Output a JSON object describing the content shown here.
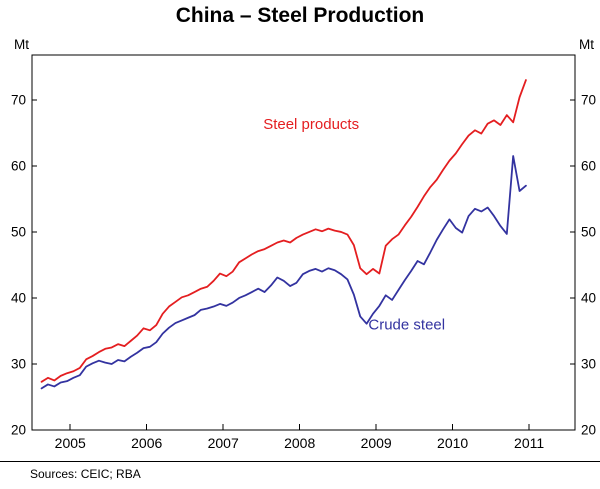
{
  "title": "China – Steel Production",
  "unit_left": "Mt",
  "unit_right": "Mt",
  "footer": {
    "sources": "Sources: CEIC; RBA"
  },
  "chart_data": {
    "type": "line",
    "title": "China – Steel Production",
    "ylabel": "Mt",
    "ylabel_right": "Mt",
    "grid": false,
    "legend_position": "in-plot-annotations",
    "ylim": [
      20,
      76.8
    ],
    "yticks": [
      20,
      30,
      40,
      50,
      60,
      70
    ],
    "xlim": [
      2004.5,
      2011.6
    ],
    "xticks": [
      2005,
      2006,
      2007,
      2008,
      2009,
      2010,
      2011
    ],
    "frequency": "monthly",
    "first_month": "Aug 2004",
    "last_month": "Dec 2010",
    "x_start_decimal": 2004.625,
    "x_step": 0.0833333,
    "series": [
      {
        "name": "Steel products",
        "color": "#e41e20",
        "label_pos": {
          "x": 2008.15,
          "y": 65.6
        },
        "values": [
          27.3,
          27.9,
          27.5,
          28.2,
          28.6,
          28.9,
          29.4,
          30.7,
          31.2,
          31.8,
          32.3,
          32.5,
          33.0,
          32.7,
          33.5,
          34.3,
          35.4,
          35.1,
          35.9,
          37.6,
          38.7,
          39.4,
          40.1,
          40.4,
          40.9,
          41.4,
          41.7,
          42.6,
          43.7,
          43.3,
          44.0,
          45.4,
          46.0,
          46.6,
          47.1,
          47.4,
          47.9,
          48.4,
          48.7,
          48.4,
          49.1,
          49.6,
          50.0,
          50.4,
          50.1,
          50.5,
          50.2,
          50.0,
          49.6,
          48.0,
          44.5,
          43.6,
          44.4,
          43.7,
          47.9,
          48.9,
          49.6,
          51.0,
          52.3,
          53.8,
          55.4,
          56.8,
          57.9,
          59.4,
          60.8,
          61.9,
          63.3,
          64.6,
          65.4,
          64.9,
          66.4,
          66.9,
          66.2,
          67.7,
          66.6,
          70.4,
          73.0
        ]
      },
      {
        "name": "Crude steel",
        "color": "#3333a0",
        "label_pos": {
          "x": 2009.4,
          "y": 35.2
        },
        "values": [
          26.3,
          26.9,
          26.6,
          27.2,
          27.4,
          27.9,
          28.3,
          29.6,
          30.1,
          30.5,
          30.2,
          30.0,
          30.6,
          30.4,
          31.1,
          31.7,
          32.4,
          32.6,
          33.3,
          34.6,
          35.5,
          36.2,
          36.6,
          37.0,
          37.4,
          38.2,
          38.4,
          38.7,
          39.1,
          38.8,
          39.3,
          40.0,
          40.4,
          40.9,
          41.4,
          40.9,
          41.9,
          43.1,
          42.6,
          41.8,
          42.3,
          43.6,
          44.1,
          44.4,
          44.0,
          44.5,
          44.2,
          43.6,
          42.8,
          40.5,
          37.2,
          36.1,
          37.6,
          38.8,
          40.4,
          39.7,
          41.2,
          42.7,
          44.1,
          45.6,
          45.1,
          46.9,
          48.8,
          50.4,
          51.9,
          50.6,
          49.9,
          52.4,
          53.5,
          53.1,
          53.7,
          52.4,
          50.9,
          49.7,
          61.5,
          56.2,
          57.0
        ]
      }
    ]
  }
}
